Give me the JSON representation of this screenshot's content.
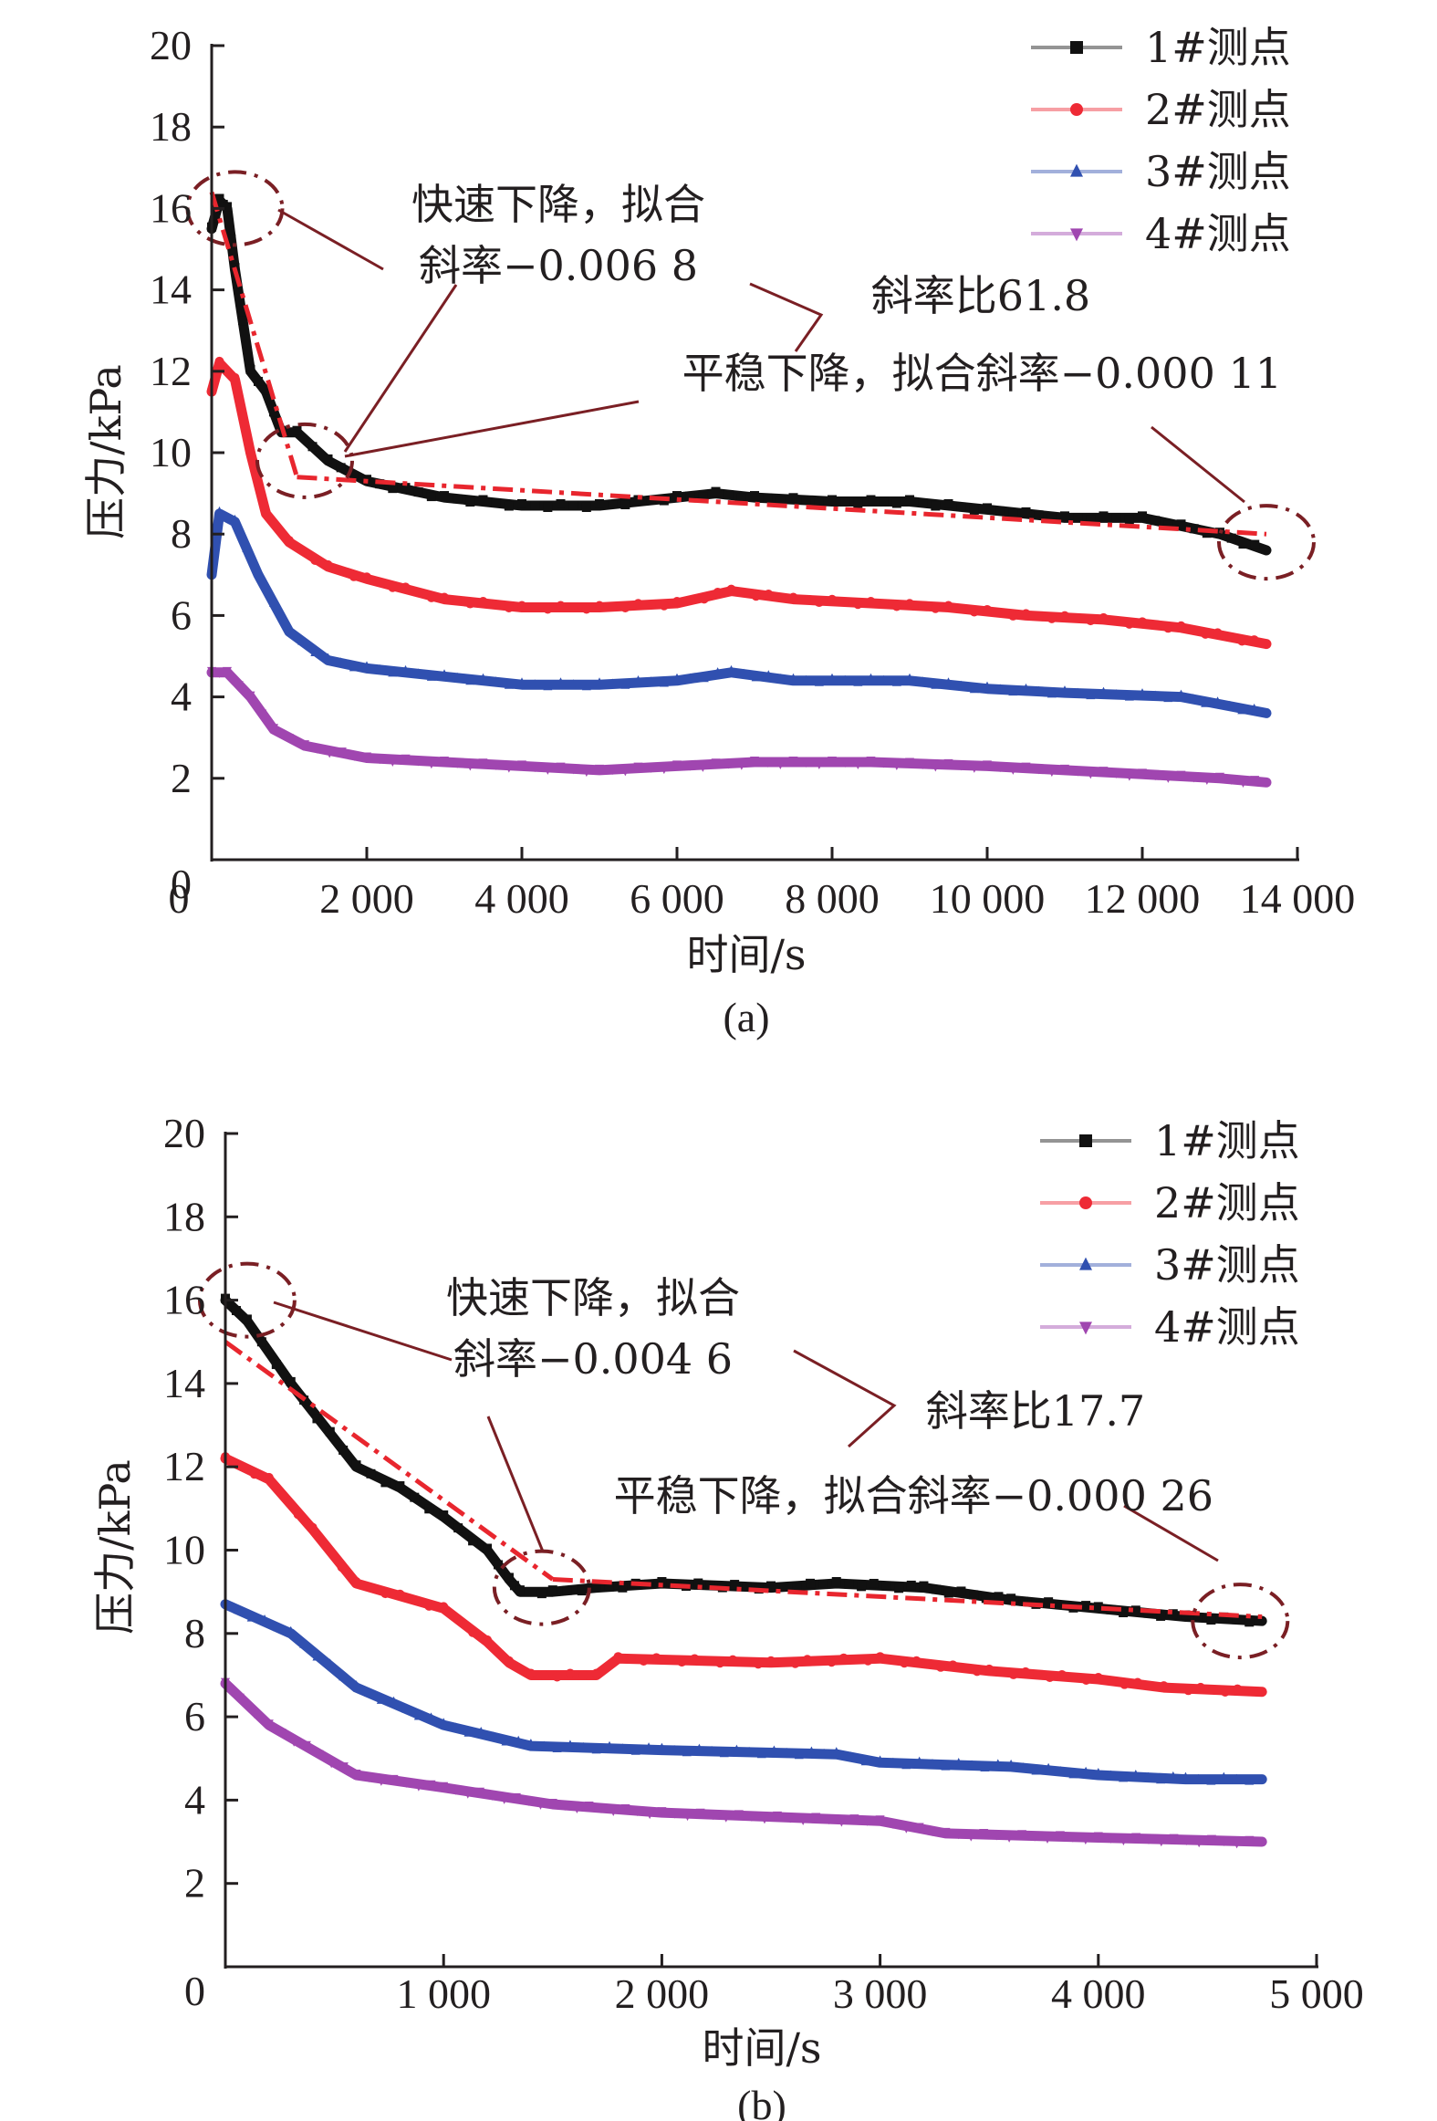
{
  "chart_data": [
    {
      "type": "line",
      "panel_label": "(a)",
      "xlabel": "时间/s",
      "ylabel": "压力/kPa",
      "xlim": [
        0,
        14000
      ],
      "ylim": [
        0,
        20
      ],
      "xticks": [
        0,
        2000,
        4000,
        6000,
        8000,
        10000,
        12000,
        14000
      ],
      "xtick_labels": [
        "0",
        "2 000",
        "4 000",
        "6 000",
        "8 000",
        "10 000",
        "12 000",
        "14 000"
      ],
      "yticks": [
        0,
        2,
        4,
        6,
        8,
        10,
        12,
        14,
        16,
        18,
        20
      ],
      "ytick_labels": [
        "0",
        "2",
        "4",
        "6",
        "8",
        "10",
        "12",
        "14",
        "16",
        "18",
        "20"
      ],
      "grid": false,
      "legend_position": "top-right",
      "series": [
        {
          "name": "1#测点",
          "marker": "square",
          "color": "#111111",
          "x": [
            0,
            100,
            200,
            300,
            500,
            700,
            900,
            1100,
            1500,
            2000,
            3000,
            4000,
            5000,
            6000,
            6500,
            7000,
            8000,
            9000,
            10000,
            11000,
            12000,
            13000,
            13600
          ],
          "y": [
            15.5,
            16.2,
            16.0,
            14.5,
            12.0,
            11.5,
            10.5,
            10.5,
            9.8,
            9.3,
            8.9,
            8.7,
            8.7,
            8.9,
            9.0,
            8.9,
            8.8,
            8.8,
            8.6,
            8.4,
            8.4,
            8.0,
            7.6
          ]
        },
        {
          "name": "2#测点",
          "marker": "circle",
          "color": "#ee2a35",
          "x": [
            0,
            100,
            300,
            500,
            700,
            1000,
            1500,
            2000,
            3000,
            4000,
            5000,
            6000,
            6700,
            7500,
            8500,
            9500,
            10500,
            11500,
            12500,
            13600
          ],
          "y": [
            11.5,
            12.2,
            11.8,
            10.0,
            8.5,
            7.8,
            7.2,
            6.9,
            6.4,
            6.2,
            6.2,
            6.3,
            6.6,
            6.4,
            6.3,
            6.2,
            6.0,
            5.9,
            5.7,
            5.3
          ]
        },
        {
          "name": "3#测点",
          "marker": "triangle-up",
          "color": "#3050b0",
          "x": [
            0,
            100,
            300,
            600,
            1000,
            1500,
            2000,
            3000,
            4000,
            5000,
            6000,
            6700,
            7500,
            9000,
            10000,
            11000,
            12500,
            13600
          ],
          "y": [
            7.0,
            8.5,
            8.3,
            7.0,
            5.6,
            4.9,
            4.7,
            4.5,
            4.3,
            4.3,
            4.4,
            4.6,
            4.4,
            4.4,
            4.2,
            4.1,
            4.0,
            3.6
          ]
        },
        {
          "name": "4#测点",
          "marker": "triangle-down",
          "color": "#a046b0",
          "x": [
            0,
            200,
            500,
            800,
            1200,
            2000,
            3000,
            4000,
            5000,
            6000,
            7000,
            8500,
            10000,
            11000,
            12000,
            13000,
            13600
          ],
          "y": [
            4.6,
            4.6,
            4.0,
            3.2,
            2.8,
            2.5,
            2.4,
            2.3,
            2.2,
            2.3,
            2.4,
            2.4,
            2.3,
            2.2,
            2.1,
            2.0,
            1.9
          ]
        }
      ],
      "fit_lines": [
        {
          "name": "fast-fit",
          "x": [
            0,
            1100
          ],
          "y": [
            16.4,
            9.4
          ]
        },
        {
          "name": "slow-fit",
          "x": [
            1100,
            13600
          ],
          "y": [
            9.4,
            8.0
          ]
        }
      ],
      "highlight_regions": [
        {
          "name": "start-region",
          "x": 300,
          "y": 16.0
        },
        {
          "name": "knee-region",
          "x": 1200,
          "y": 9.8
        },
        {
          "name": "end-region",
          "x": 13600,
          "y": 7.8
        }
      ],
      "annotations": {
        "fast_line1": "快速下降，拟合",
        "fast_line2": "斜率−0.006 8",
        "ratio": "斜率比61.8",
        "slow": "平稳下降，拟合斜率−0.000 11"
      }
    },
    {
      "type": "line",
      "panel_label": "(b)",
      "xlabel": "时间/s",
      "ylabel": "压力/kPa",
      "xlim": [
        0,
        5000
      ],
      "ylim": [
        0,
        20
      ],
      "xticks": [
        1000,
        2000,
        3000,
        4000,
        5000
      ],
      "xtick_labels": [
        "1 000",
        "2 000",
        "3 000",
        "4 000",
        "5 000"
      ],
      "yticks": [
        0,
        2,
        4,
        6,
        8,
        10,
        12,
        14,
        16,
        18,
        20
      ],
      "ytick_labels": [
        "0",
        "2",
        "4",
        "6",
        "8",
        "10",
        "12",
        "14",
        "16",
        "18",
        "20"
      ],
      "grid": false,
      "legend_position": "top-right",
      "series": [
        {
          "name": "1#测点",
          "marker": "square",
          "color": "#111111",
          "x": [
            0,
            100,
            300,
            600,
            800,
            1000,
            1200,
            1300,
            1350,
            1500,
            1700,
            2000,
            2500,
            2800,
            3200,
            3600,
            4000,
            4400,
            4750
          ],
          "y": [
            16.0,
            15.5,
            14.0,
            12.0,
            11.5,
            10.8,
            10.0,
            9.3,
            9.0,
            9.0,
            9.1,
            9.2,
            9.1,
            9.2,
            9.1,
            8.8,
            8.6,
            8.4,
            8.3
          ]
        },
        {
          "name": "2#测点",
          "marker": "circle",
          "color": "#ee2a35",
          "x": [
            0,
            200,
            400,
            600,
            800,
            1000,
            1200,
            1300,
            1400,
            1700,
            1800,
            2500,
            3000,
            3500,
            4000,
            4300,
            4750
          ],
          "y": [
            12.2,
            11.7,
            10.5,
            9.2,
            8.9,
            8.6,
            7.8,
            7.3,
            7.0,
            7.0,
            7.4,
            7.3,
            7.4,
            7.1,
            6.9,
            6.7,
            6.6
          ]
        },
        {
          "name": "3#测点",
          "marker": "triangle-up",
          "color": "#3050b0",
          "x": [
            0,
            300,
            600,
            1000,
            1400,
            2000,
            2800,
            3000,
            3600,
            4000,
            4400,
            4750
          ],
          "y": [
            8.7,
            8.0,
            6.7,
            5.8,
            5.3,
            5.2,
            5.1,
            4.9,
            4.8,
            4.6,
            4.5,
            4.5
          ]
        },
        {
          "name": "4#测点",
          "marker": "triangle-down",
          "color": "#a046b0",
          "x": [
            0,
            200,
            600,
            1000,
            1500,
            2000,
            3000,
            3300,
            4000,
            4750
          ],
          "y": [
            6.8,
            5.8,
            4.6,
            4.3,
            3.9,
            3.7,
            3.5,
            3.2,
            3.1,
            3.0
          ]
        }
      ],
      "fit_lines": [
        {
          "name": "fast-fit",
          "x": [
            0,
            1500
          ],
          "y": [
            15.0,
            9.3
          ]
        },
        {
          "name": "slow-fit",
          "x": [
            1500,
            4750
          ],
          "y": [
            9.3,
            8.4
          ]
        }
      ],
      "highlight_regions": [
        {
          "name": "start-region",
          "x": 100,
          "y": 16.0
        },
        {
          "name": "knee-region",
          "x": 1450,
          "y": 9.1
        },
        {
          "name": "end-region",
          "x": 4650,
          "y": 8.3
        }
      ],
      "annotations": {
        "fast_line1": "快速下降，拟合",
        "fast_line2": "斜率−0.004 6",
        "ratio": "斜率比17.7",
        "slow": "平稳下降，拟合斜率−0.000 26"
      }
    }
  ]
}
